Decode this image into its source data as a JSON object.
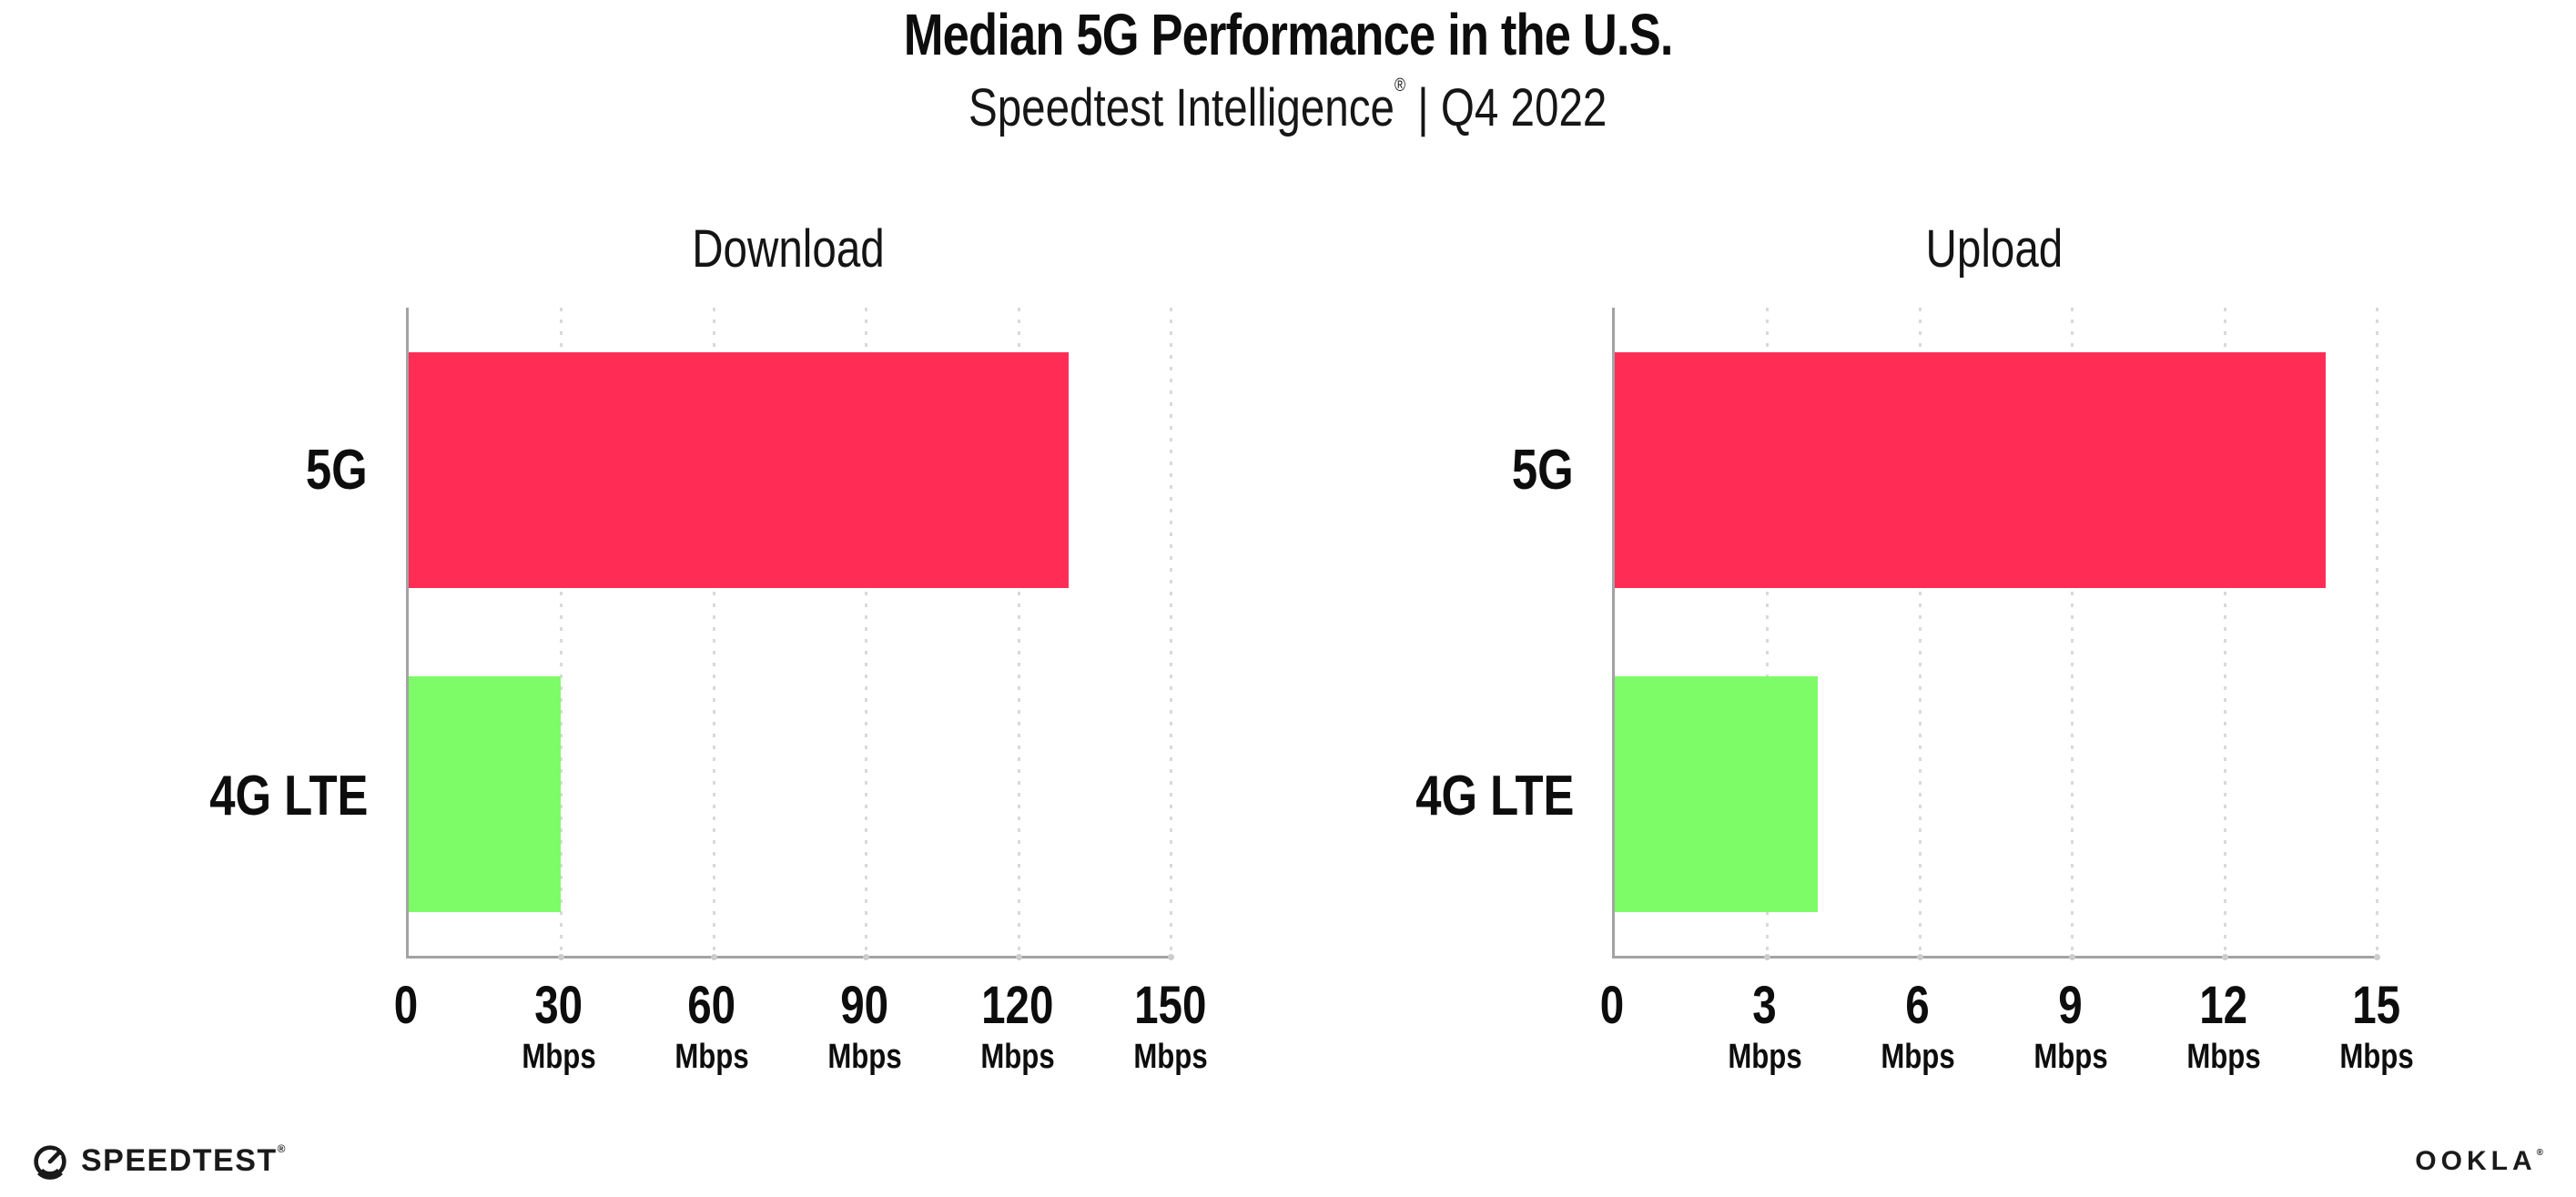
{
  "header": {
    "title": "Median 5G Performance in the U.S.",
    "subtitle_brand": "Speedtest Intelligence",
    "subtitle_mark": "®",
    "subtitle_rest": "| Q4 2022"
  },
  "chart_data": [
    {
      "type": "bar",
      "orientation": "horizontal",
      "title": "Download",
      "categories": [
        "5G",
        "4G LTE"
      ],
      "values": [
        130,
        30
      ],
      "unit": "Mbps",
      "xlim": [
        0,
        150
      ],
      "xticks": [
        0,
        30,
        60,
        90,
        120,
        150
      ],
      "unit_shown_on_zero_tick": false,
      "bar_colors": [
        "#FF2D55",
        "#7DFC67"
      ],
      "grid": "dotted-vertical",
      "legend": "none"
    },
    {
      "type": "bar",
      "orientation": "horizontal",
      "title": "Upload",
      "categories": [
        "5G",
        "4G LTE"
      ],
      "values": [
        14,
        4
      ],
      "unit": "Mbps",
      "xlim": [
        0,
        15
      ],
      "xticks": [
        0,
        3,
        6,
        9,
        12,
        15
      ],
      "unit_shown_on_zero_tick": false,
      "bar_colors": [
        "#FF2D55",
        "#7DFC67"
      ],
      "grid": "dotted-vertical",
      "legend": "none"
    }
  ],
  "footer": {
    "speedtest_label": "SPEEDTEST",
    "speedtest_mark": "®",
    "ookla_label": "OOKLA",
    "ookla_mark": "®"
  },
  "colors": {
    "bar_5g": "#FF2D55",
    "bar_4g_lte": "#7DFC67",
    "axis": "#a3a3a3",
    "gridline": "#d9d9d9",
    "text": "#0d0d0d",
    "background": "#ffffff"
  }
}
